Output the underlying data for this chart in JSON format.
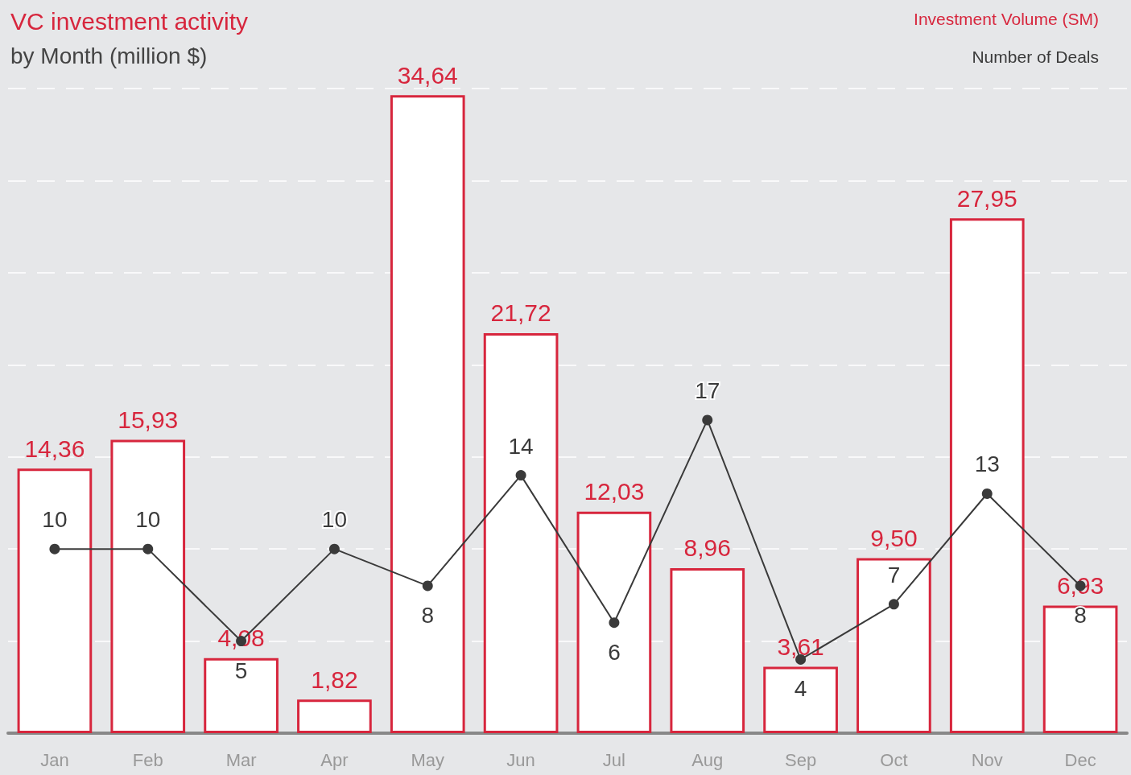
{
  "chart_data": {
    "type": "bar",
    "title": "VC investment activity",
    "subtitle": "by Month (million $)",
    "categories": [
      "Jan",
      "Feb",
      "Mar",
      "Apr",
      "May",
      "Jun",
      "Jul",
      "Aug",
      "Sep",
      "Oct",
      "Nov",
      "Dec"
    ],
    "series": [
      {
        "name": "Investment Volume (SM)",
        "color": "#d7263d",
        "values": [
          14.36,
          15.93,
          4.08,
          1.82,
          34.64,
          21.72,
          12.03,
          8.96,
          3.61,
          9.5,
          27.95,
          6.93
        ],
        "value_labels": [
          "14,36",
          "15,93",
          "4,08",
          "1,82",
          "34,64",
          "21,72",
          "12,03",
          "8,96",
          "3,61",
          "9,50",
          "27,95",
          "6,93"
        ]
      },
      {
        "name": "Number of Deals",
        "type": "line",
        "color": "#3a3a3a",
        "values": [
          10,
          10,
          5,
          10,
          8,
          14,
          6,
          17,
          4,
          7,
          13,
          8
        ],
        "value_labels": [
          "10",
          "10",
          "5",
          "10",
          "8",
          "14",
          "6",
          "17",
          "4",
          "7",
          "13",
          "8"
        ]
      }
    ],
    "tick_labels": "x",
    "grid": "y",
    "legend": "top right",
    "marker": "circle",
    "line_style": "solid"
  }
}
